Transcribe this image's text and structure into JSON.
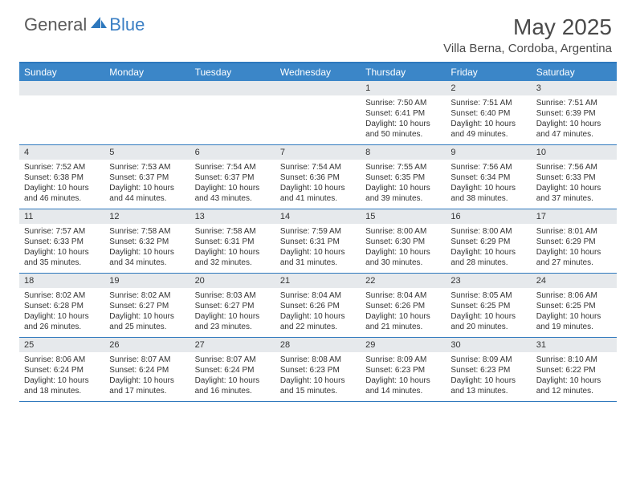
{
  "logo": {
    "text1": "General",
    "text2": "Blue"
  },
  "title": "May 2025",
  "location": "Villa Berna, Cordoba, Argentina",
  "colors": {
    "header_bg": "#3b86c8",
    "border": "#2e78bd",
    "daynum_bg": "#e6e9ec",
    "text": "#333333",
    "logo_gray": "#5a5a5a",
    "logo_blue": "#3b7fc4"
  },
  "day_names": [
    "Sunday",
    "Monday",
    "Tuesday",
    "Wednesday",
    "Thursday",
    "Friday",
    "Saturday"
  ],
  "weeks": [
    [
      {
        "num": "",
        "sunrise": "",
        "sunset": "",
        "daylight": ""
      },
      {
        "num": "",
        "sunrise": "",
        "sunset": "",
        "daylight": ""
      },
      {
        "num": "",
        "sunrise": "",
        "sunset": "",
        "daylight": ""
      },
      {
        "num": "",
        "sunrise": "",
        "sunset": "",
        "daylight": ""
      },
      {
        "num": "1",
        "sunrise": "Sunrise: 7:50 AM",
        "sunset": "Sunset: 6:41 PM",
        "daylight": "Daylight: 10 hours and 50 minutes."
      },
      {
        "num": "2",
        "sunrise": "Sunrise: 7:51 AM",
        "sunset": "Sunset: 6:40 PM",
        "daylight": "Daylight: 10 hours and 49 minutes."
      },
      {
        "num": "3",
        "sunrise": "Sunrise: 7:51 AM",
        "sunset": "Sunset: 6:39 PM",
        "daylight": "Daylight: 10 hours and 47 minutes."
      }
    ],
    [
      {
        "num": "4",
        "sunrise": "Sunrise: 7:52 AM",
        "sunset": "Sunset: 6:38 PM",
        "daylight": "Daylight: 10 hours and 46 minutes."
      },
      {
        "num": "5",
        "sunrise": "Sunrise: 7:53 AM",
        "sunset": "Sunset: 6:37 PM",
        "daylight": "Daylight: 10 hours and 44 minutes."
      },
      {
        "num": "6",
        "sunrise": "Sunrise: 7:54 AM",
        "sunset": "Sunset: 6:37 PM",
        "daylight": "Daylight: 10 hours and 43 minutes."
      },
      {
        "num": "7",
        "sunrise": "Sunrise: 7:54 AM",
        "sunset": "Sunset: 6:36 PM",
        "daylight": "Daylight: 10 hours and 41 minutes."
      },
      {
        "num": "8",
        "sunrise": "Sunrise: 7:55 AM",
        "sunset": "Sunset: 6:35 PM",
        "daylight": "Daylight: 10 hours and 39 minutes."
      },
      {
        "num": "9",
        "sunrise": "Sunrise: 7:56 AM",
        "sunset": "Sunset: 6:34 PM",
        "daylight": "Daylight: 10 hours and 38 minutes."
      },
      {
        "num": "10",
        "sunrise": "Sunrise: 7:56 AM",
        "sunset": "Sunset: 6:33 PM",
        "daylight": "Daylight: 10 hours and 37 minutes."
      }
    ],
    [
      {
        "num": "11",
        "sunrise": "Sunrise: 7:57 AM",
        "sunset": "Sunset: 6:33 PM",
        "daylight": "Daylight: 10 hours and 35 minutes."
      },
      {
        "num": "12",
        "sunrise": "Sunrise: 7:58 AM",
        "sunset": "Sunset: 6:32 PM",
        "daylight": "Daylight: 10 hours and 34 minutes."
      },
      {
        "num": "13",
        "sunrise": "Sunrise: 7:58 AM",
        "sunset": "Sunset: 6:31 PM",
        "daylight": "Daylight: 10 hours and 32 minutes."
      },
      {
        "num": "14",
        "sunrise": "Sunrise: 7:59 AM",
        "sunset": "Sunset: 6:31 PM",
        "daylight": "Daylight: 10 hours and 31 minutes."
      },
      {
        "num": "15",
        "sunrise": "Sunrise: 8:00 AM",
        "sunset": "Sunset: 6:30 PM",
        "daylight": "Daylight: 10 hours and 30 minutes."
      },
      {
        "num": "16",
        "sunrise": "Sunrise: 8:00 AM",
        "sunset": "Sunset: 6:29 PM",
        "daylight": "Daylight: 10 hours and 28 minutes."
      },
      {
        "num": "17",
        "sunrise": "Sunrise: 8:01 AM",
        "sunset": "Sunset: 6:29 PM",
        "daylight": "Daylight: 10 hours and 27 minutes."
      }
    ],
    [
      {
        "num": "18",
        "sunrise": "Sunrise: 8:02 AM",
        "sunset": "Sunset: 6:28 PM",
        "daylight": "Daylight: 10 hours and 26 minutes."
      },
      {
        "num": "19",
        "sunrise": "Sunrise: 8:02 AM",
        "sunset": "Sunset: 6:27 PM",
        "daylight": "Daylight: 10 hours and 25 minutes."
      },
      {
        "num": "20",
        "sunrise": "Sunrise: 8:03 AM",
        "sunset": "Sunset: 6:27 PM",
        "daylight": "Daylight: 10 hours and 23 minutes."
      },
      {
        "num": "21",
        "sunrise": "Sunrise: 8:04 AM",
        "sunset": "Sunset: 6:26 PM",
        "daylight": "Daylight: 10 hours and 22 minutes."
      },
      {
        "num": "22",
        "sunrise": "Sunrise: 8:04 AM",
        "sunset": "Sunset: 6:26 PM",
        "daylight": "Daylight: 10 hours and 21 minutes."
      },
      {
        "num": "23",
        "sunrise": "Sunrise: 8:05 AM",
        "sunset": "Sunset: 6:25 PM",
        "daylight": "Daylight: 10 hours and 20 minutes."
      },
      {
        "num": "24",
        "sunrise": "Sunrise: 8:06 AM",
        "sunset": "Sunset: 6:25 PM",
        "daylight": "Daylight: 10 hours and 19 minutes."
      }
    ],
    [
      {
        "num": "25",
        "sunrise": "Sunrise: 8:06 AM",
        "sunset": "Sunset: 6:24 PM",
        "daylight": "Daylight: 10 hours and 18 minutes."
      },
      {
        "num": "26",
        "sunrise": "Sunrise: 8:07 AM",
        "sunset": "Sunset: 6:24 PM",
        "daylight": "Daylight: 10 hours and 17 minutes."
      },
      {
        "num": "27",
        "sunrise": "Sunrise: 8:07 AM",
        "sunset": "Sunset: 6:24 PM",
        "daylight": "Daylight: 10 hours and 16 minutes."
      },
      {
        "num": "28",
        "sunrise": "Sunrise: 8:08 AM",
        "sunset": "Sunset: 6:23 PM",
        "daylight": "Daylight: 10 hours and 15 minutes."
      },
      {
        "num": "29",
        "sunrise": "Sunrise: 8:09 AM",
        "sunset": "Sunset: 6:23 PM",
        "daylight": "Daylight: 10 hours and 14 minutes."
      },
      {
        "num": "30",
        "sunrise": "Sunrise: 8:09 AM",
        "sunset": "Sunset: 6:23 PM",
        "daylight": "Daylight: 10 hours and 13 minutes."
      },
      {
        "num": "31",
        "sunrise": "Sunrise: 8:10 AM",
        "sunset": "Sunset: 6:22 PM",
        "daylight": "Daylight: 10 hours and 12 minutes."
      }
    ]
  ]
}
